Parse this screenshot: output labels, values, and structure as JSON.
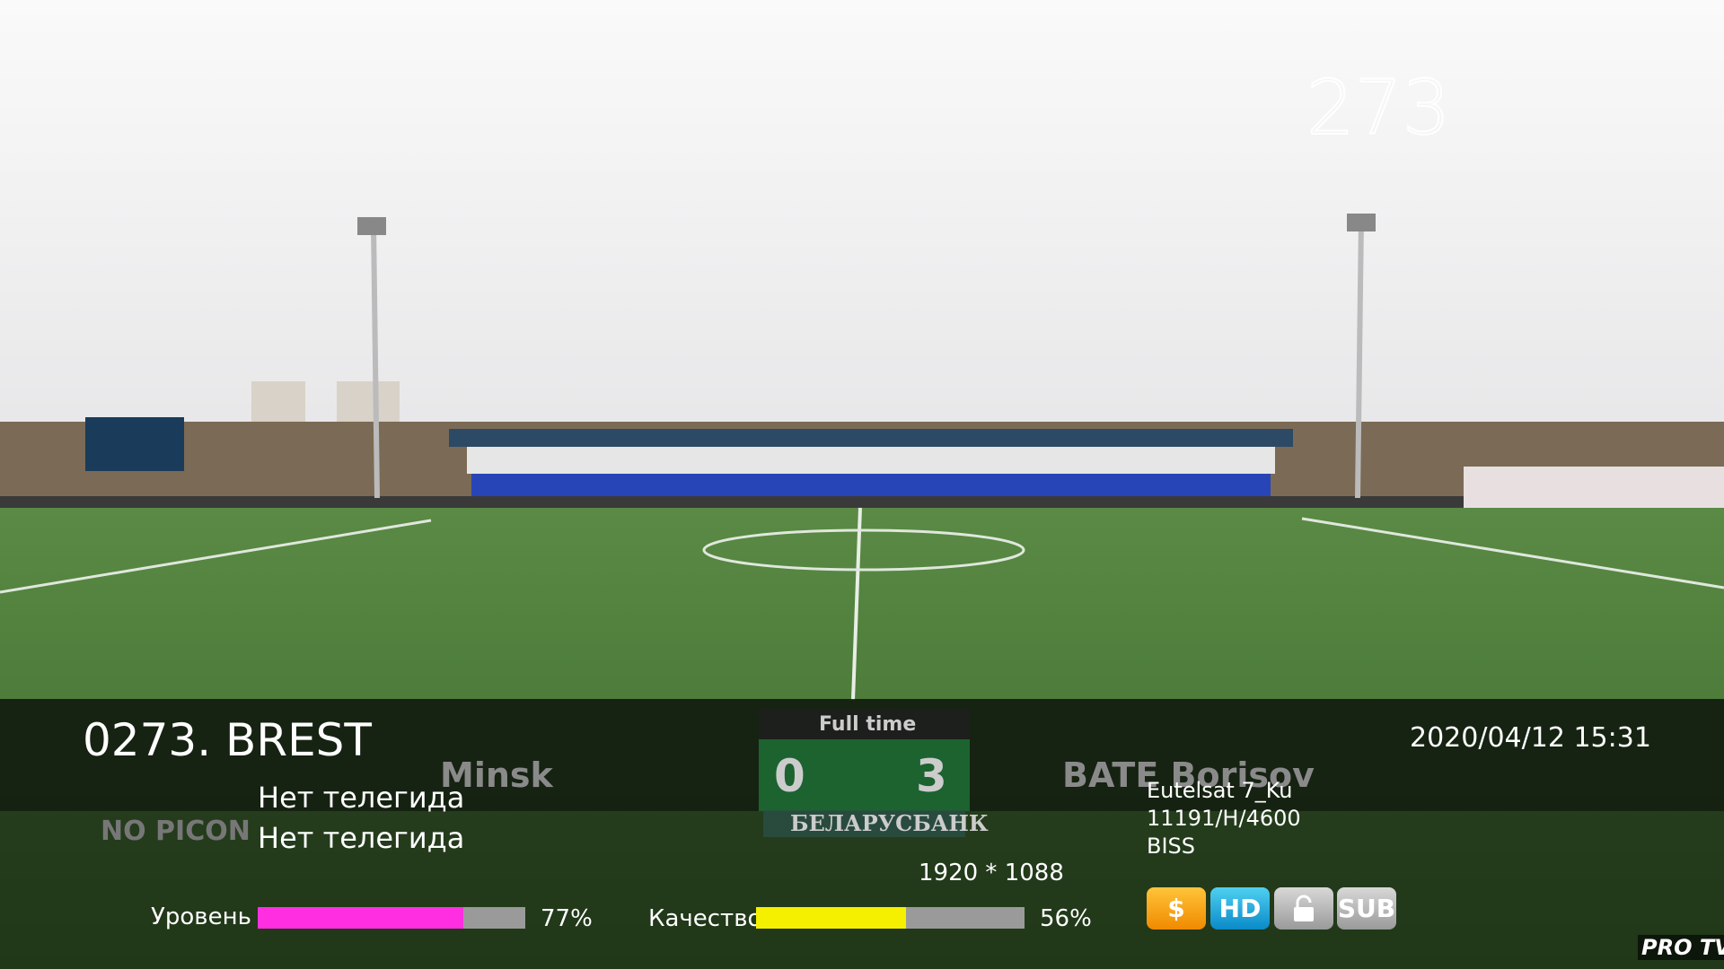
{
  "channel_number_big": "273",
  "infobar": {
    "channel": "0273. BREST",
    "epg_now": "Нет телегида",
    "epg_next": "Нет телегида",
    "picon": "NO PICON",
    "datetime": "2020/04/12 15:31",
    "satellite": "Eutelsat 7_Ku",
    "transponder": "11191/H/4600",
    "crypt": "BISS",
    "resolution": "1920 * 1088",
    "level": {
      "label": "Уровень",
      "value": 77,
      "value_label": "77%",
      "color": "#ff2ee0"
    },
    "quality": {
      "label": "Качество",
      "value": 56,
      "value_label": "56%",
      "color": "#f5f000"
    },
    "icons": [
      "$",
      "HD",
      "SUB"
    ]
  },
  "video": {
    "status": "Full time",
    "home": "Minsk",
    "away": "BATE Borisov",
    "home_score": "0",
    "away_score": "3",
    "sponsor": "БЕЛАРУСБАНК",
    "watermark": "PRO TV"
  }
}
